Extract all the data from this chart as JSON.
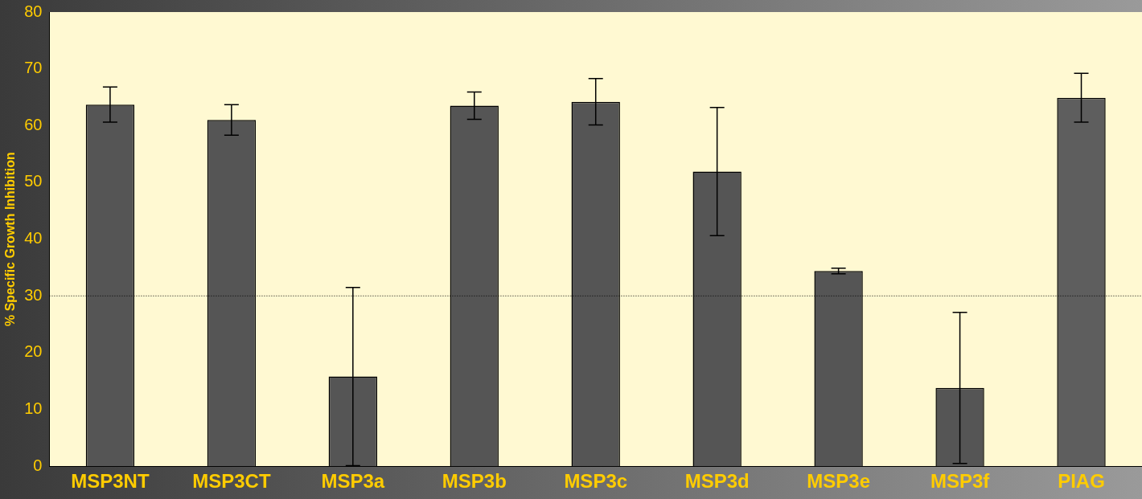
{
  "chart_data": {
    "type": "bar",
    "ylabel": "% Specific Growth Inhibition",
    "categories": [
      "MSP3NT",
      "MSP3CT",
      "MSP3a",
      "MSP3b",
      "MSP3c",
      "MSP3d",
      "MSP3e",
      "MSP3f",
      "PIAG"
    ],
    "values": [
      63.7,
      61.0,
      15.8,
      63.5,
      64.2,
      51.9,
      34.4,
      13.8,
      64.9
    ],
    "errors": [
      3.1,
      2.7,
      15.7,
      2.4,
      4.1,
      11.3,
      0.5,
      13.3,
      4.3
    ],
    "colors": [
      "#555555",
      "#555555",
      "#555555",
      "#555555",
      "#555555",
      "#555555",
      "#555555",
      "#555555",
      "#5e5e5e"
    ],
    "ylim": [
      0,
      80
    ],
    "yticks": [
      0,
      10,
      20,
      30,
      40,
      50,
      60,
      70,
      80
    ],
    "grid": false,
    "legend": false,
    "ref_lines": [
      {
        "axis": "y",
        "value": 30,
        "line_style": "dotted",
        "color": "#000000"
      }
    ]
  }
}
